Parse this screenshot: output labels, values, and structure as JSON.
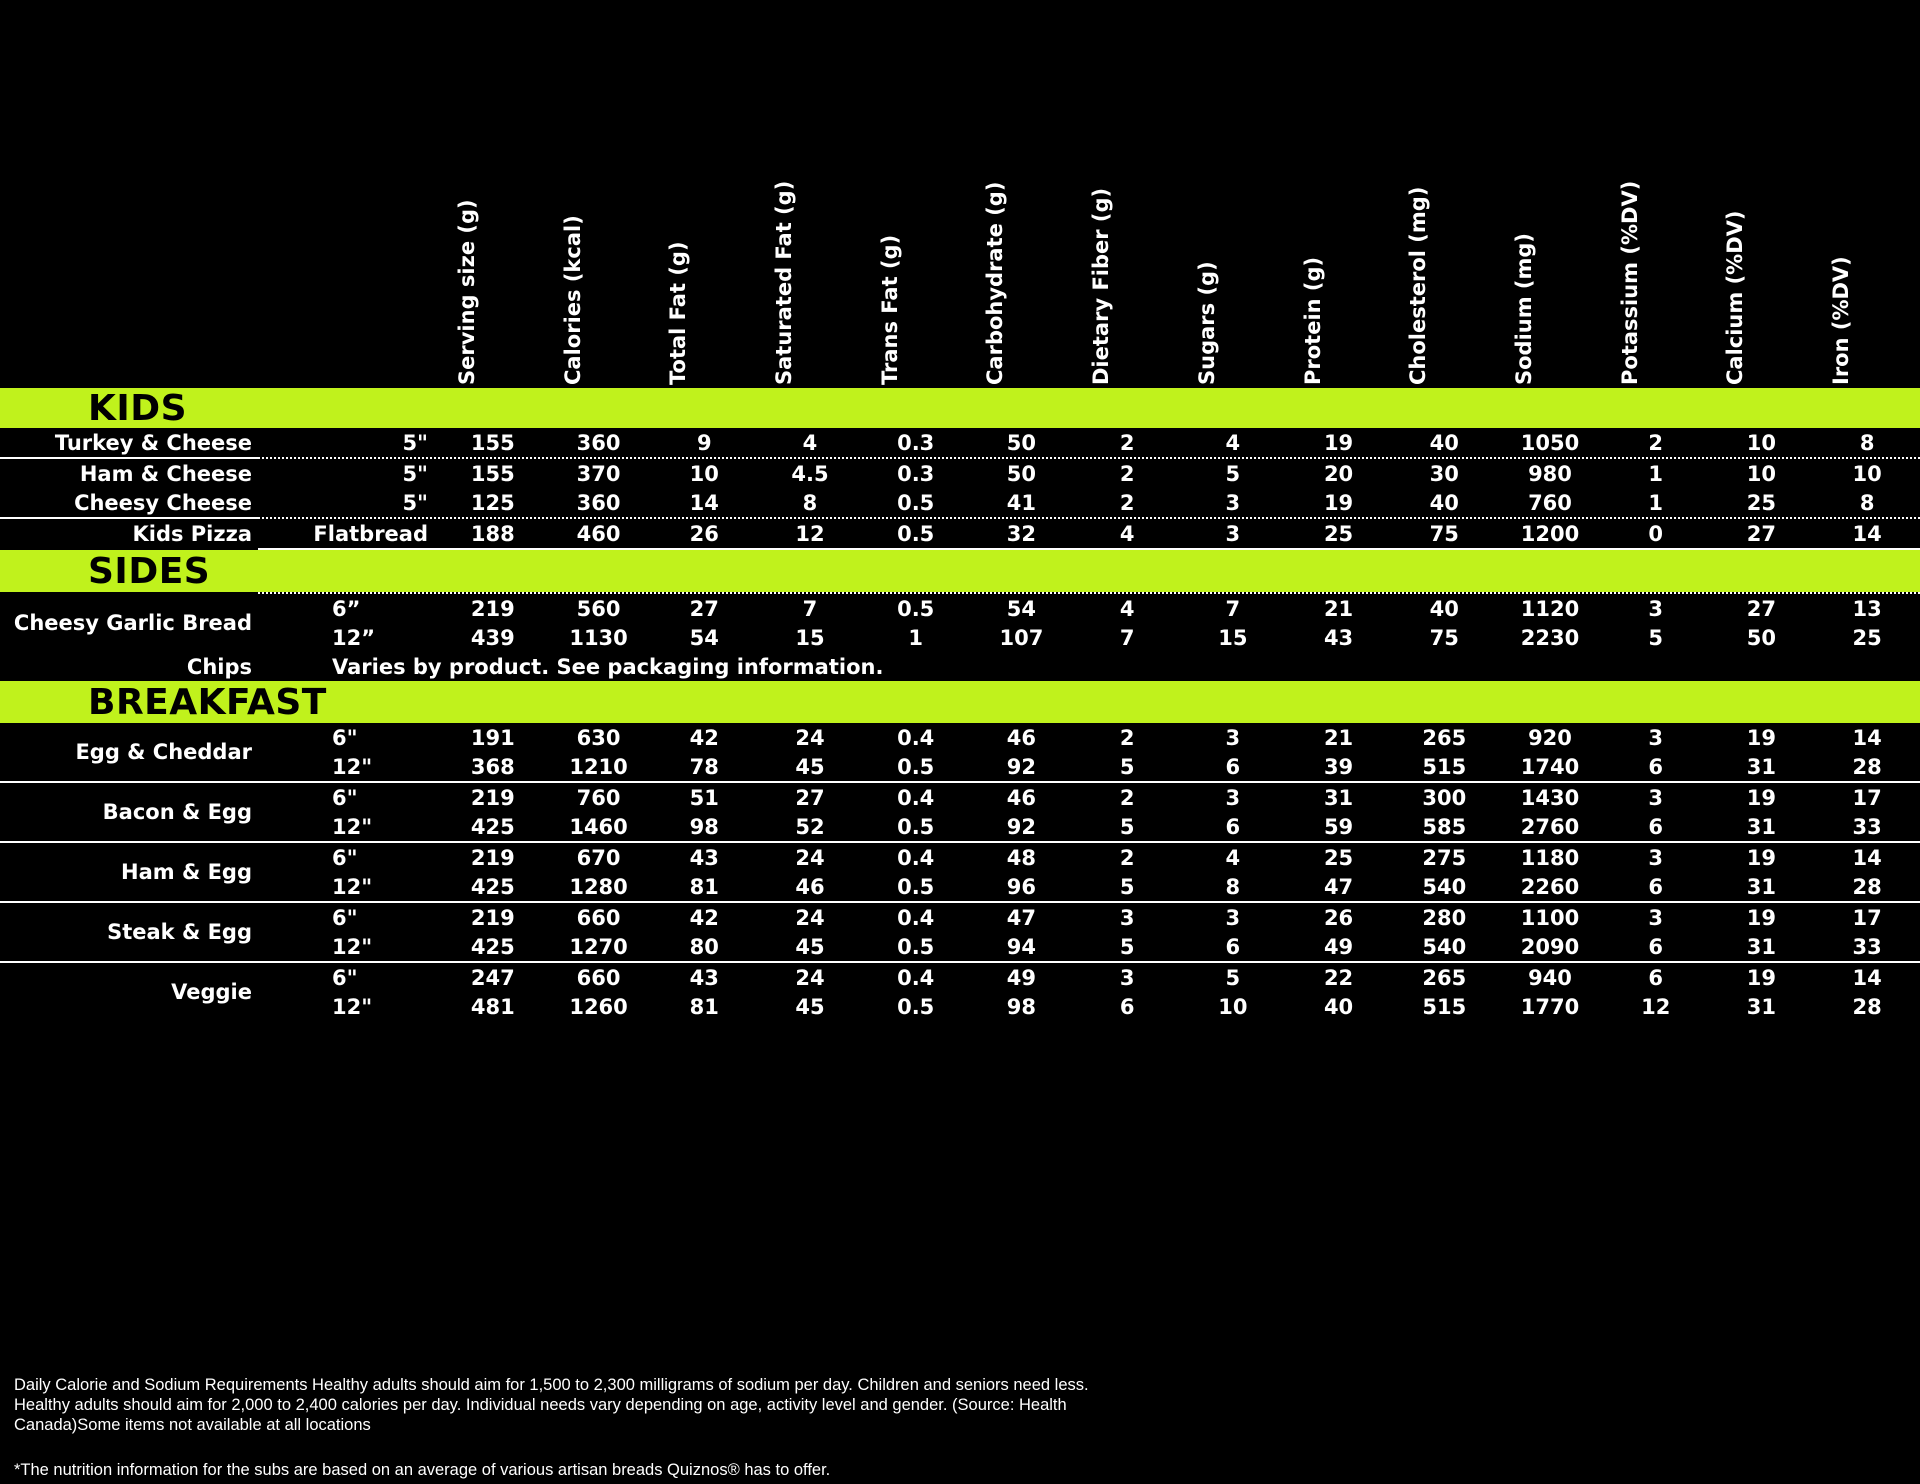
{
  "colors": {
    "accent": "#c0f21c",
    "background": "#000000",
    "text": "#ffffff",
    "section_title_text": "#000000"
  },
  "table": {
    "columns": [
      "Serving size (g)",
      "Calories (kcal)",
      "Total Fat (g)",
      "Saturated Fat (g)",
      "Trans Fat (g)",
      "Carbohydrate (g)",
      "Dietary Fiber (g)",
      "Sugars (g)",
      "Protein (g)",
      "Cholesterol (mg)",
      "Sodium (mg)",
      "Potassium (%DV)",
      "Calcium (%DV)",
      "Iron (%DV)"
    ],
    "sections": [
      {
        "id": "kids",
        "title": "KIDS",
        "size_align": "right",
        "groups": [
          {
            "name": "Turkey & Cheese",
            "divider_after": "solid-left-dotted-right",
            "rows": [
              {
                "size": "5\"",
                "values": [
                  "155",
                  "360",
                  "9",
                  "4",
                  "0.3",
                  "50",
                  "2",
                  "4",
                  "19",
                  "40",
                  "1050",
                  "2",
                  "10",
                  "8"
                ]
              }
            ]
          },
          {
            "name": "Ham & Cheese",
            "divider_after": null,
            "rows": [
              {
                "size": "5\"",
                "values": [
                  "155",
                  "370",
                  "10",
                  "4.5",
                  "0.3",
                  "50",
                  "2",
                  "5",
                  "20",
                  "30",
                  "980",
                  "1",
                  "10",
                  "10"
                ]
              }
            ]
          },
          {
            "name": "Cheesy Cheese",
            "divider_after": "solid-left-dotted-right",
            "rows": [
              {
                "size": "5\"",
                "values": [
                  "125",
                  "360",
                  "14",
                  "8",
                  "0.5",
                  "41",
                  "2",
                  "3",
                  "19",
                  "40",
                  "760",
                  "1",
                  "25",
                  "8"
                ]
              }
            ]
          },
          {
            "name": "Kids Pizza",
            "divider_after": null,
            "rows": [
              {
                "size": "Flatbread",
                "values": [
                  "188",
                  "460",
                  "26",
                  "12",
                  "0.5",
                  "32",
                  "4",
                  "3",
                  "25",
                  "75",
                  "1200",
                  "0",
                  "27",
                  "14"
                ]
              }
            ]
          }
        ]
      },
      {
        "id": "sides",
        "title": "SIDES",
        "size_align": "left",
        "divider_above": "solid-right",
        "divider_below": "dotted-right",
        "groups": [
          {
            "name": "Cheesy Garlic Bread",
            "divider_after": null,
            "rows": [
              {
                "size": "6”",
                "values": [
                  "219",
                  "560",
                  "27",
                  "7",
                  "0.5",
                  "54",
                  "4",
                  "7",
                  "21",
                  "40",
                  "1120",
                  "3",
                  "27",
                  "13"
                ]
              },
              {
                "size": "12”",
                "values": [
                  "439",
                  "1130",
                  "54",
                  "15",
                  "1",
                  "107",
                  "7",
                  "15",
                  "43",
                  "75",
                  "2230",
                  "5",
                  "50",
                  "25"
                ]
              }
            ]
          },
          {
            "name": "Chips",
            "divider_after": null,
            "note": "Varies by product. See packaging information.",
            "rows": []
          }
        ]
      },
      {
        "id": "breakfast",
        "title": "BREAKFAST",
        "size_align": "left",
        "group_divider": "solid-full",
        "groups": [
          {
            "name": "Egg & Cheddar",
            "rows": [
              {
                "size": "6\"",
                "values": [
                  "191",
                  "630",
                  "42",
                  "24",
                  "0.4",
                  "46",
                  "2",
                  "3",
                  "21",
                  "265",
                  "920",
                  "3",
                  "19",
                  "14"
                ]
              },
              {
                "size": "12\"",
                "values": [
                  "368",
                  "1210",
                  "78",
                  "45",
                  "0.5",
                  "92",
                  "5",
                  "6",
                  "39",
                  "515",
                  "1740",
                  "6",
                  "31",
                  "28"
                ]
              }
            ]
          },
          {
            "name": "Bacon & Egg",
            "rows": [
              {
                "size": "6\"",
                "values": [
                  "219",
                  "760",
                  "51",
                  "27",
                  "0.4",
                  "46",
                  "2",
                  "3",
                  "31",
                  "300",
                  "1430",
                  "3",
                  "19",
                  "17"
                ]
              },
              {
                "size": "12\"",
                "values": [
                  "425",
                  "1460",
                  "98",
                  "52",
                  "0.5",
                  "92",
                  "5",
                  "6",
                  "59",
                  "585",
                  "2760",
                  "6",
                  "31",
                  "33"
                ]
              }
            ]
          },
          {
            "name": "Ham & Egg",
            "rows": [
              {
                "size": "6\"",
                "values": [
                  "219",
                  "670",
                  "43",
                  "24",
                  "0.4",
                  "48",
                  "2",
                  "4",
                  "25",
                  "275",
                  "1180",
                  "3",
                  "19",
                  "14"
                ]
              },
              {
                "size": "12\"",
                "values": [
                  "425",
                  "1280",
                  "81",
                  "46",
                  "0.5",
                  "96",
                  "5",
                  "8",
                  "47",
                  "540",
                  "2260",
                  "6",
                  "31",
                  "28"
                ]
              }
            ]
          },
          {
            "name": "Steak & Egg",
            "rows": [
              {
                "size": "6\"",
                "values": [
                  "219",
                  "660",
                  "42",
                  "24",
                  "0.4",
                  "47",
                  "3",
                  "3",
                  "26",
                  "280",
                  "1100",
                  "3",
                  "19",
                  "17"
                ]
              },
              {
                "size": "12\"",
                "values": [
                  "425",
                  "1270",
                  "80",
                  "45",
                  "0.5",
                  "94",
                  "5",
                  "6",
                  "49",
                  "540",
                  "2090",
                  "6",
                  "31",
                  "33"
                ]
              }
            ]
          },
          {
            "name": "Veggie",
            "rows": [
              {
                "size": "6\"",
                "values": [
                  "247",
                  "660",
                  "43",
                  "24",
                  "0.4",
                  "49",
                  "3",
                  "5",
                  "22",
                  "265",
                  "940",
                  "6",
                  "19",
                  "14"
                ]
              },
              {
                "size": "12\"",
                "values": [
                  "481",
                  "1260",
                  "81",
                  "45",
                  "0.5",
                  "98",
                  "6",
                  "10",
                  "40",
                  "515",
                  "1770",
                  "12",
                  "31",
                  "28"
                ]
              }
            ]
          }
        ]
      }
    ]
  },
  "footer": {
    "daily_requirements": "Daily Calorie and Sodium Requirements Healthy adults should aim for 1,500 to 2,300 milligrams of sodium per day. Children and seniors need less. Healthy adults should aim for 2,000 to 2,400 calories per day. Individual needs vary depending on age, activity level and gender. (Source: Health Canada)Some items not available at all locations",
    "subs_note": "*The nutrition information for the subs are based on an average of various artisan breads Quiznos® has to offer."
  }
}
